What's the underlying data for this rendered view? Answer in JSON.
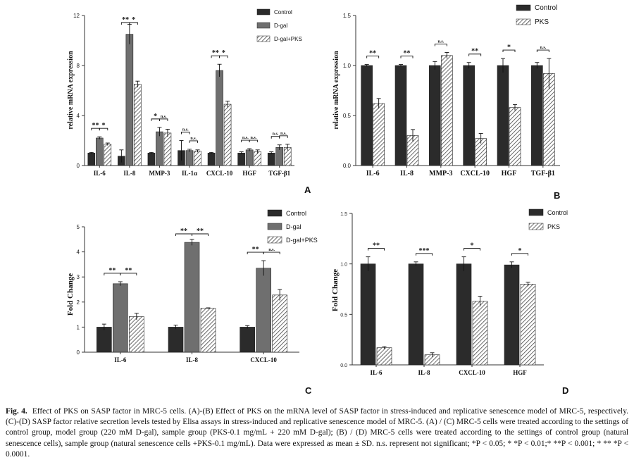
{
  "colors": {
    "dark": "#2b2b2b",
    "gray": "#6f6f6f",
    "hatch": "#4a4a4a",
    "axis": "#333333"
  },
  "chart_data": [
    {
      "panel_label": "A",
      "type": "bar",
      "ylabel": "relative mRNA expression",
      "ylim": [
        0,
        12
      ],
      "yticks": [
        "0",
        "4",
        "8",
        "12"
      ],
      "categories": [
        "IL-6",
        "IL-8",
        "MMP-3",
        "IL-1α",
        "CXCL-10",
        "HGF",
        "TGF-β1"
      ],
      "legend": [
        "Control",
        "D-gal",
        "D-gal+PKS"
      ],
      "series": [
        {
          "name": "Control",
          "style": "dark",
          "values": [
            1.0,
            0.75,
            1.0,
            1.2,
            1.0,
            1.0,
            1.0
          ],
          "errors": [
            0.05,
            0.5,
            0.05,
            0.8,
            0.05,
            0.1,
            0.1
          ]
        },
        {
          "name": "D-gal",
          "style": "gray",
          "values": [
            2.2,
            10.5,
            2.7,
            1.2,
            7.6,
            1.25,
            1.45
          ],
          "errors": [
            0.1,
            0.8,
            0.35,
            0.1,
            0.5,
            0.1,
            0.2
          ]
        },
        {
          "name": "D-gal+PKS",
          "style": "hatch",
          "values": [
            1.7,
            6.5,
            2.6,
            1.15,
            4.9,
            1.1,
            1.45
          ],
          "errors": [
            0.1,
            0.25,
            0.3,
            0.1,
            0.25,
            0.15,
            0.25
          ]
        }
      ],
      "sig": [
        {
          "cat": 0,
          "pair": [
            0,
            1
          ],
          "text": "**"
        },
        {
          "cat": 0,
          "pair": [
            1,
            2
          ],
          "text": "*"
        },
        {
          "cat": 1,
          "pair": [
            0,
            1
          ],
          "text": "**"
        },
        {
          "cat": 1,
          "pair": [
            1,
            2
          ],
          "text": "*"
        },
        {
          "cat": 2,
          "pair": [
            0,
            1
          ],
          "text": "*"
        },
        {
          "cat": 2,
          "pair": [
            1,
            2
          ],
          "text": "n.s."
        },
        {
          "cat": 3,
          "pair": [
            0,
            1
          ],
          "text": "n.s."
        },
        {
          "cat": 3,
          "pair": [
            1,
            2
          ],
          "text": "n.s."
        },
        {
          "cat": 4,
          "pair": [
            0,
            1
          ],
          "text": "**"
        },
        {
          "cat": 4,
          "pair": [
            1,
            2
          ],
          "text": "*"
        },
        {
          "cat": 5,
          "pair": [
            0,
            1
          ],
          "text": "n.s."
        },
        {
          "cat": 5,
          "pair": [
            1,
            2
          ],
          "text": "n.s."
        },
        {
          "cat": 6,
          "pair": [
            0,
            1
          ],
          "text": "n.s."
        },
        {
          "cat": 6,
          "pair": [
            1,
            2
          ],
          "text": "n.s."
        }
      ]
    },
    {
      "panel_label": "B",
      "type": "bar",
      "ylabel": "relative mRNA expression",
      "ylim": [
        0,
        1.5
      ],
      "yticks": [
        "0.0",
        "0.5",
        "1.0",
        "1.5"
      ],
      "categories": [
        "IL-6",
        "IL-8",
        "MMP-3",
        "CXCL-10",
        "HGF",
        "TGF-β1"
      ],
      "legend": [
        "Control",
        "PKS"
      ],
      "series": [
        {
          "name": "Control",
          "style": "dark",
          "values": [
            1.0,
            1.0,
            1.0,
            1.0,
            1.0,
            1.0
          ],
          "errors": [
            0.01,
            0.01,
            0.04,
            0.03,
            0.07,
            0.03
          ]
        },
        {
          "name": "PKS",
          "style": "hatch",
          "values": [
            0.62,
            0.3,
            1.1,
            0.27,
            0.58,
            0.92
          ],
          "errors": [
            0.05,
            0.06,
            0.03,
            0.05,
            0.03,
            0.15
          ]
        }
      ],
      "sig": [
        {
          "cat": 0,
          "pair": [
            0,
            1
          ],
          "text": "**"
        },
        {
          "cat": 1,
          "pair": [
            0,
            1
          ],
          "text": "**"
        },
        {
          "cat": 2,
          "pair": [
            0,
            1
          ],
          "text": "n.s."
        },
        {
          "cat": 3,
          "pair": [
            0,
            1
          ],
          "text": "**"
        },
        {
          "cat": 4,
          "pair": [
            0,
            1
          ],
          "text": "*"
        },
        {
          "cat": 5,
          "pair": [
            0,
            1
          ],
          "text": "n.s."
        }
      ]
    },
    {
      "panel_label": "C",
      "type": "bar",
      "ylabel": "Fold  Change",
      "ylim": [
        0,
        5
      ],
      "yticks": [
        "0",
        "1",
        "2",
        "3",
        "4",
        "5"
      ],
      "categories": [
        "IL-6",
        "IL-8",
        "CXCL-10"
      ],
      "legend": [
        "Control",
        "D-gal",
        "D-gal+PKS"
      ],
      "series": [
        {
          "name": "Control",
          "style": "dark",
          "values": [
            1.0,
            1.0,
            1.0
          ],
          "errors": [
            0.12,
            0.08,
            0.06
          ]
        },
        {
          "name": "D-gal",
          "style": "gray",
          "values": [
            2.73,
            4.38,
            3.35
          ],
          "errors": [
            0.08,
            0.12,
            0.3
          ]
        },
        {
          "name": "D-gal+PKS",
          "style": "hatch",
          "values": [
            1.42,
            1.75,
            2.28
          ],
          "errors": [
            0.13,
            0.02,
            0.22
          ]
        }
      ],
      "sig": [
        {
          "cat": 0,
          "pair": [
            0,
            1
          ],
          "text": "**"
        },
        {
          "cat": 0,
          "pair": [
            1,
            2
          ],
          "text": "**"
        },
        {
          "cat": 1,
          "pair": [
            0,
            1
          ],
          "text": "**"
        },
        {
          "cat": 1,
          "pair": [
            1,
            2
          ],
          "text": "**"
        },
        {
          "cat": 2,
          "pair": [
            0,
            1
          ],
          "text": "**"
        },
        {
          "cat": 2,
          "pair": [
            1,
            2
          ],
          "text": "n.s."
        }
      ]
    },
    {
      "panel_label": "D",
      "type": "bar",
      "ylabel": "Fold  Change",
      "ylim": [
        0,
        1.5
      ],
      "yticks": [
        "0.0",
        "0.5",
        "1.0",
        "1.5"
      ],
      "categories": [
        "IL-6",
        "IL-8",
        "CXCL-10",
        "HGF"
      ],
      "legend": [
        "Control",
        "PKS"
      ],
      "series": [
        {
          "name": "Control",
          "style": "dark",
          "values": [
            1.0,
            1.0,
            1.0,
            0.99
          ],
          "errors": [
            0.07,
            0.02,
            0.07,
            0.03
          ]
        },
        {
          "name": "PKS",
          "style": "hatch",
          "values": [
            0.17,
            0.1,
            0.63,
            0.8
          ],
          "errors": [
            0.01,
            0.02,
            0.05,
            0.02
          ]
        }
      ],
      "sig": [
        {
          "cat": 0,
          "pair": [
            0,
            1
          ],
          "text": "**"
        },
        {
          "cat": 1,
          "pair": [
            0,
            1
          ],
          "text": "***"
        },
        {
          "cat": 2,
          "pair": [
            0,
            1
          ],
          "text": "*"
        },
        {
          "cat": 3,
          "pair": [
            0,
            1
          ],
          "text": "*"
        }
      ]
    }
  ],
  "caption": {
    "label": "Fig. 4.",
    "text": "Effect of PKS on SASP factor in MRC-5 cells. (A)-(B) Effect of PKS on the mRNA level of SASP factor in stress-induced and replicative senescence model of MRC-5, respectively. (C)-(D) SASP factor relative secretion levels tested by Elisa assays in stress-induced and replicative senescence model of MRC-5. (A) / (C) MRC-5 cells were treated according to the settings of control group, model group (220 mM D-gal), sample group (PKS-0.1 mg/mL + 220 mM D-gal); (B) / (D) MRC-5 cells were treated according to the settings of control group (natural senescence cells), sample group (natural senescence cells +PKS-0.1 mg/mL). Data were expressed as mean ± SD. n.s. represent not significant; *P < 0.05; * *P < 0.01;* **P < 0.001; * ** *P < 0.0001."
  }
}
